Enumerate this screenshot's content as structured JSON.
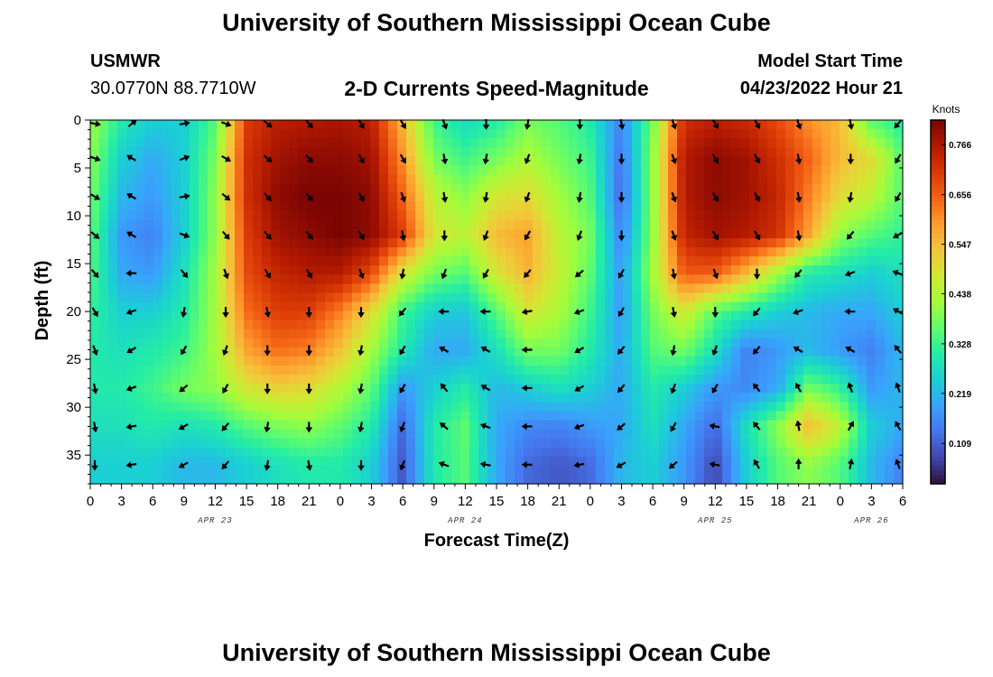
{
  "header": {
    "title": "University of Southern Mississippi Ocean Cube",
    "station": "USMWR",
    "coords": "30.0770N  88.7710W",
    "plot_title": "2-D Currents Speed-Magnitude",
    "model_label": "Model Start Time",
    "model_time": "04/23/2022 Hour 21"
  },
  "footer": {
    "title": "University of Southern Mississippi Ocean Cube"
  },
  "colors": {
    "arrow": "#000000",
    "scale": [
      "#30123b",
      "#4145ab",
      "#4675ed",
      "#39a2fc",
      "#1bcfd4",
      "#24eca6",
      "#61fc6c",
      "#a4fc3b",
      "#d1e834",
      "#f3c63a",
      "#fe9b2d",
      "#f36315",
      "#d93806",
      "#b11901",
      "#7a0403"
    ]
  },
  "chart_data": {
    "type": "heatmap",
    "title": "2-D Currents Speed-Magnitude",
    "xlabel": "Forecast Time(Z)",
    "ylabel": "Depth (ft)",
    "x_ticks": [
      "0",
      "3",
      "6",
      "9",
      "12",
      "15",
      "18",
      "21",
      "0",
      "3",
      "6",
      "9",
      "12",
      "15",
      "18",
      "21",
      "0",
      "3",
      "6",
      "9",
      "12",
      "15",
      "18",
      "21",
      "0",
      "3",
      "6"
    ],
    "date_labels": [
      {
        "label": "APR 23",
        "x_hour": 12
      },
      {
        "label": "APR 24",
        "x_hour": 36
      },
      {
        "label": "APR 25",
        "x_hour": 60
      },
      {
        "label": "APR 26",
        "x_hour": 75
      }
    ],
    "x_range_hours": [
      0,
      78
    ],
    "y_ticks": [
      0,
      5,
      10,
      15,
      20,
      25,
      30,
      35
    ],
    "ylim": [
      0,
      38
    ],
    "depths": [
      0,
      4,
      8,
      12,
      16,
      20,
      24,
      28,
      32,
      36
    ],
    "colorbar": {
      "unit": "Knots",
      "ticks": [
        "0.766",
        "0.656",
        "0.547",
        "0.438",
        "0.328",
        "0.219",
        "0.109"
      ],
      "range": [
        0.02,
        0.82
      ]
    },
    "speed_grid": {
      "x_hours": [
        0,
        3,
        6,
        9,
        12,
        15,
        18,
        21,
        24,
        27,
        30,
        33,
        36,
        39,
        42,
        45,
        48,
        51,
        54,
        57,
        60,
        63,
        66,
        69,
        72,
        75,
        78
      ],
      "depths": [
        0,
        4,
        8,
        12,
        16,
        20,
        24,
        28,
        32,
        36
      ],
      "values": [
        [
          0.42,
          0.3,
          0.25,
          0.25,
          0.35,
          0.7,
          0.75,
          0.76,
          0.77,
          0.75,
          0.55,
          0.33,
          0.27,
          0.3,
          0.38,
          0.35,
          0.3,
          0.15,
          0.38,
          0.72,
          0.75,
          0.73,
          0.68,
          0.6,
          0.55,
          0.35,
          0.3
        ],
        [
          0.4,
          0.25,
          0.2,
          0.25,
          0.38,
          0.72,
          0.78,
          0.8,
          0.8,
          0.78,
          0.6,
          0.38,
          0.33,
          0.38,
          0.43,
          0.38,
          0.33,
          0.13,
          0.4,
          0.76,
          0.8,
          0.78,
          0.72,
          0.65,
          0.55,
          0.5,
          0.35
        ],
        [
          0.38,
          0.22,
          0.18,
          0.25,
          0.4,
          0.72,
          0.8,
          0.82,
          0.82,
          0.8,
          0.65,
          0.45,
          0.4,
          0.48,
          0.5,
          0.42,
          0.35,
          0.12,
          0.4,
          0.76,
          0.8,
          0.78,
          0.74,
          0.62,
          0.5,
          0.45,
          0.35
        ],
        [
          0.36,
          0.18,
          0.15,
          0.25,
          0.4,
          0.7,
          0.78,
          0.8,
          0.82,
          0.8,
          0.7,
          0.48,
          0.45,
          0.55,
          0.58,
          0.45,
          0.38,
          0.15,
          0.4,
          0.74,
          0.78,
          0.76,
          0.72,
          0.58,
          0.4,
          0.35,
          0.32
        ],
        [
          0.35,
          0.2,
          0.18,
          0.28,
          0.42,
          0.68,
          0.74,
          0.76,
          0.76,
          0.68,
          0.48,
          0.38,
          0.35,
          0.48,
          0.56,
          0.46,
          0.36,
          0.18,
          0.42,
          0.66,
          0.66,
          0.55,
          0.42,
          0.3,
          0.28,
          0.25,
          0.28
        ],
        [
          0.32,
          0.25,
          0.25,
          0.3,
          0.42,
          0.64,
          0.7,
          0.7,
          0.62,
          0.5,
          0.33,
          0.25,
          0.24,
          0.35,
          0.48,
          0.43,
          0.33,
          0.18,
          0.38,
          0.48,
          0.35,
          0.3,
          0.25,
          0.22,
          0.2,
          0.2,
          0.25
        ],
        [
          0.3,
          0.28,
          0.3,
          0.33,
          0.42,
          0.58,
          0.64,
          0.62,
          0.54,
          0.42,
          0.3,
          0.2,
          0.2,
          0.28,
          0.38,
          0.38,
          0.3,
          0.2,
          0.35,
          0.38,
          0.28,
          0.15,
          0.18,
          0.22,
          0.18,
          0.15,
          0.22
        ],
        [
          0.3,
          0.3,
          0.33,
          0.38,
          0.4,
          0.48,
          0.52,
          0.5,
          0.44,
          0.36,
          0.18,
          0.25,
          0.3,
          0.22,
          0.25,
          0.28,
          0.25,
          0.2,
          0.3,
          0.25,
          0.18,
          0.16,
          0.2,
          0.38,
          0.32,
          0.18,
          0.22
        ],
        [
          0.28,
          0.28,
          0.3,
          0.28,
          0.3,
          0.35,
          0.38,
          0.4,
          0.36,
          0.3,
          0.12,
          0.3,
          0.36,
          0.2,
          0.16,
          0.15,
          0.18,
          0.2,
          0.28,
          0.2,
          0.12,
          0.28,
          0.4,
          0.55,
          0.45,
          0.25,
          0.2
        ],
        [
          0.25,
          0.25,
          0.25,
          0.22,
          0.22,
          0.25,
          0.28,
          0.3,
          0.3,
          0.25,
          0.1,
          0.3,
          0.35,
          0.2,
          0.12,
          0.1,
          0.12,
          0.22,
          0.25,
          0.18,
          0.08,
          0.25,
          0.35,
          0.4,
          0.35,
          0.22,
          0.15
        ]
      ]
    },
    "vectors": {
      "x_hours": [
        0,
        4,
        9,
        13,
        17,
        21,
        26,
        30,
        34,
        38,
        42,
        47,
        51,
        56,
        60,
        64,
        68,
        73,
        78
      ],
      "depths": [
        0,
        4,
        8,
        12,
        16,
        20,
        24,
        28,
        32,
        36
      ],
      "dirs": [
        [
          100,
          50,
          80,
          110,
          130,
          140,
          150,
          150,
          160,
          180,
          190,
          180,
          170,
          160,
          150,
          150,
          160,
          170,
          220
        ],
        [
          110,
          300,
          70,
          120,
          130,
          140,
          150,
          150,
          170,
          190,
          200,
          190,
          180,
          160,
          150,
          150,
          170,
          180,
          210
        ],
        [
          120,
          300,
          80,
          130,
          140,
          140,
          150,
          160,
          170,
          190,
          200,
          190,
          180,
          160,
          150,
          150,
          170,
          190,
          210
        ],
        [
          130,
          300,
          110,
          140,
          140,
          140,
          150,
          170,
          180,
          200,
          210,
          200,
          180,
          160,
          150,
          150,
          170,
          220,
          240
        ],
        [
          140,
          270,
          140,
          160,
          150,
          150,
          160,
          190,
          200,
          210,
          220,
          230,
          210,
          170,
          160,
          180,
          220,
          250,
          290
        ],
        [
          150,
          250,
          190,
          180,
          170,
          180,
          180,
          220,
          270,
          270,
          260,
          250,
          210,
          170,
          180,
          220,
          250,
          270,
          300
        ],
        [
          160,
          240,
          210,
          200,
          180,
          180,
          190,
          210,
          300,
          300,
          270,
          240,
          220,
          190,
          200,
          220,
          300,
          300,
          320
        ],
        [
          170,
          250,
          230,
          210,
          180,
          180,
          190,
          210,
          320,
          300,
          270,
          240,
          220,
          200,
          210,
          320,
          330,
          340,
          340
        ],
        [
          170,
          260,
          240,
          220,
          190,
          180,
          190,
          200,
          310,
          290,
          270,
          250,
          230,
          210,
          280,
          320,
          350,
          30,
          330
        ],
        [
          180,
          260,
          240,
          220,
          190,
          170,
          180,
          200,
          290,
          280,
          270,
          260,
          240,
          230,
          280,
          330,
          0,
          10,
          340
        ]
      ]
    }
  }
}
